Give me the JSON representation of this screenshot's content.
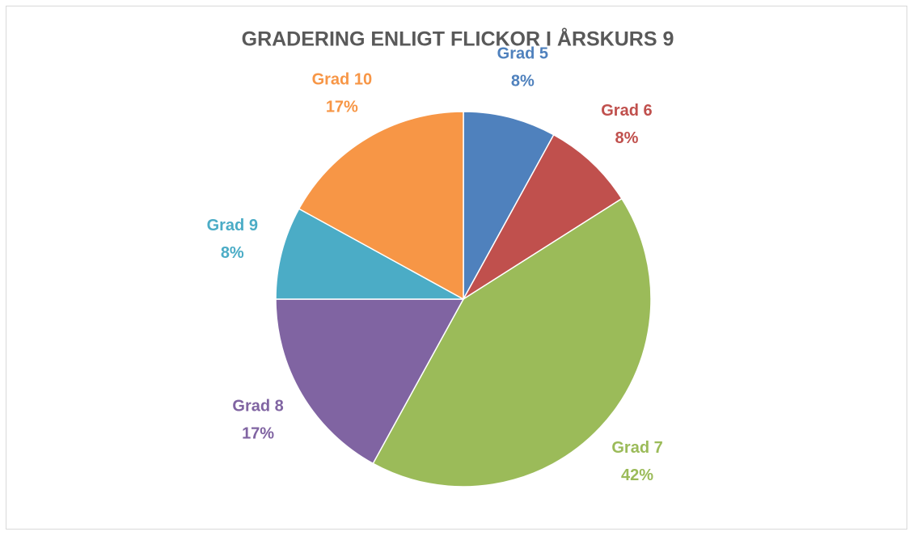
{
  "chart_data": {
    "type": "pie",
    "title": "GRADERING ENLIGT FLICKOR I ÅRSKURS 9",
    "categories": [
      "Grad 5",
      "Grad 6",
      "Grad 7",
      "Grad 8",
      "Grad 9",
      "Grad 10"
    ],
    "values": [
      8,
      8,
      42,
      17,
      8,
      17
    ],
    "value_labels": [
      "8%",
      "8%",
      "42%",
      "17%",
      "8%",
      "17%"
    ],
    "colors": [
      "#4f81bd",
      "#c0504d",
      "#9bbb59",
      "#8064a2",
      "#4bacc6",
      "#f79646"
    ]
  }
}
